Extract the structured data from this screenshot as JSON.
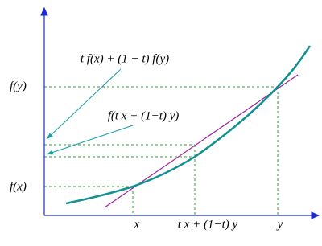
{
  "axes": {
    "y_labels": {
      "fy": "f(y)",
      "fx": "f(x)"
    },
    "x_labels": {
      "x": "x",
      "mid": "t x + (1−t) y",
      "y": "y"
    }
  },
  "annotations": {
    "chord": "t f(x) + (1 − t) f(y)",
    "curve": "f(t x + (1−t) y)"
  }
}
